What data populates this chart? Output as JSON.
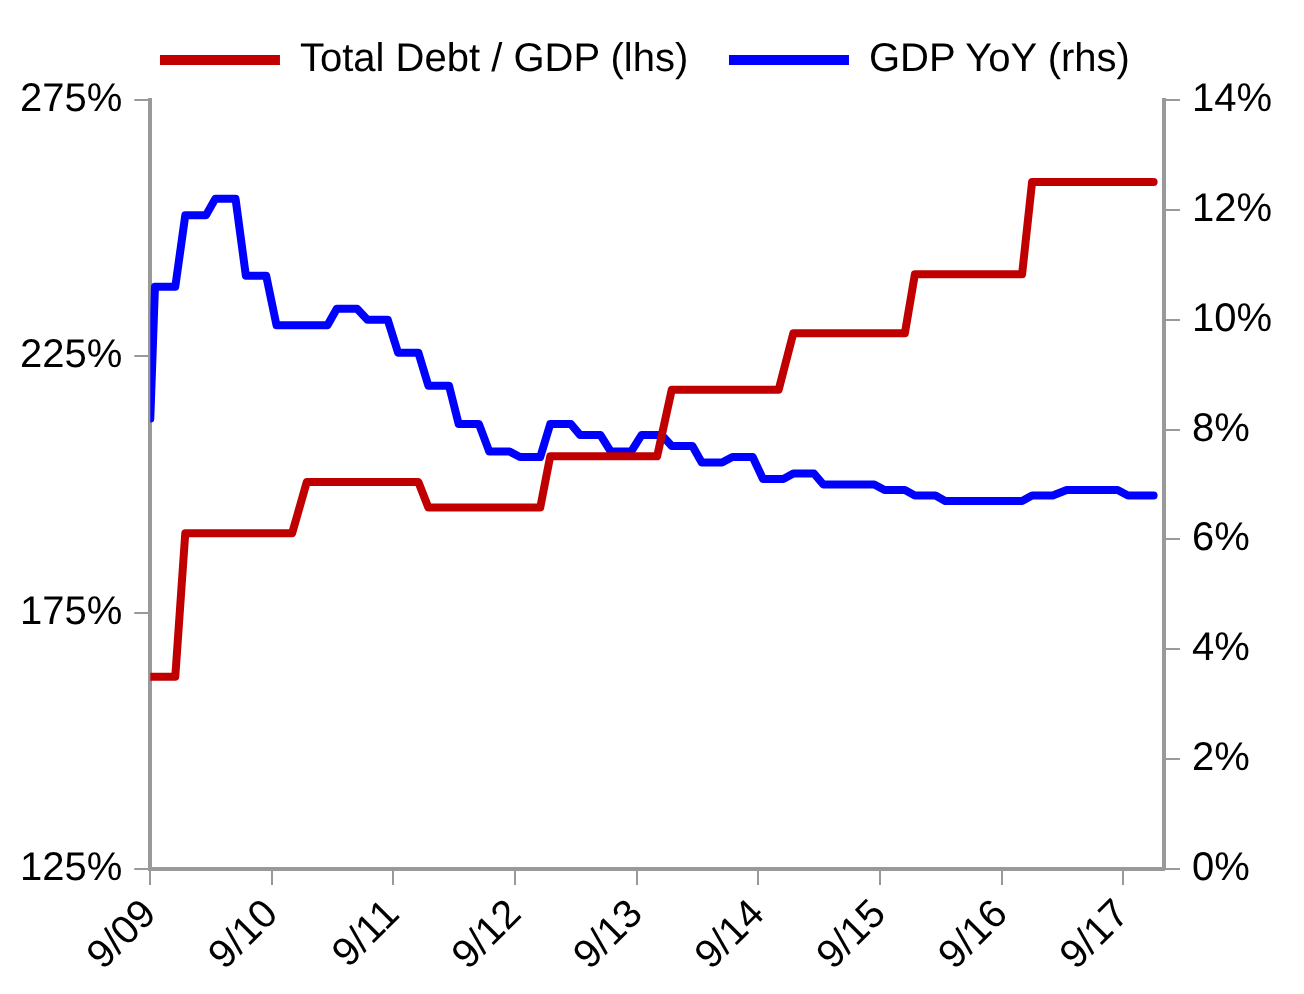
{
  "chart_data": {
    "type": "line",
    "legend": "top",
    "grid": false,
    "marker": "none",
    "line_style": "solid",
    "xlim": [
      "2009-09-01",
      "2018-01-01"
    ],
    "xticks": [
      {
        "value": "2009-09-01",
        "label": "9/09"
      },
      {
        "value": "2010-09-01",
        "label": "9/10"
      },
      {
        "value": "2011-09-01",
        "label": "9/11"
      },
      {
        "value": "2012-09-01",
        "label": "9/12"
      },
      {
        "value": "2013-09-01",
        "label": "9/13"
      },
      {
        "value": "2014-09-01",
        "label": "9/14"
      },
      {
        "value": "2015-09-01",
        "label": "9/15"
      },
      {
        "value": "2016-09-01",
        "label": "9/16"
      },
      {
        "value": "2017-09-01",
        "label": "9/17"
      }
    ],
    "ylim": [
      125,
      275
    ],
    "yticks": [
      {
        "value": 125,
        "label": "125%"
      },
      {
        "value": 175,
        "label": "175%"
      },
      {
        "value": 225,
        "label": "225%"
      },
      {
        "value": 275,
        "label": "275%"
      }
    ],
    "y2lim": [
      0,
      14
    ],
    "y2ticks": [
      {
        "value": 0,
        "label": "0%"
      },
      {
        "value": 2,
        "label": "2%"
      },
      {
        "value": 4,
        "label": "4%"
      },
      {
        "value": 6,
        "label": "6%"
      },
      {
        "value": 8,
        "label": "8%"
      },
      {
        "value": 10,
        "label": "10%"
      },
      {
        "value": 12,
        "label": "12%"
      },
      {
        "value": 14,
        "label": "14%"
      }
    ],
    "series": [
      {
        "name": "Total Debt / GDP (lhs)",
        "color": "#c00000",
        "axis": "y",
        "x": [
          "2009-09-01",
          "2009-11-15",
          "2009-12-15",
          "2010-11-01",
          "2010-12-15",
          "2011-11-15",
          "2011-12-15",
          "2012-11-15",
          "2012-12-15",
          "2013-11-01",
          "2013-12-15",
          "2014-11-01",
          "2014-12-15",
          "2015-11-15",
          "2015-12-15",
          "2016-11-01",
          "2016-12-01",
          "2017-12-01"
        ],
        "values": [
          162.5,
          162.5,
          190.5,
          190.5,
          200.5,
          200.5,
          195.5,
          195.5,
          205.5,
          205.5,
          218.5,
          218.5,
          229.5,
          229.5,
          241,
          241,
          259,
          259
        ]
      },
      {
        "name": "GDP YoY (rhs)",
        "color": "#0000ff",
        "axis": "y2",
        "x": [
          "2009-09-01",
          "2009-09-15",
          "2009-11-15",
          "2009-12-15",
          "2010-02-15",
          "2010-03-15",
          "2010-05-15",
          "2010-06-15",
          "2010-08-15",
          "2010-09-15",
          "2011-02-15",
          "2011-03-15",
          "2011-05-15",
          "2011-06-15",
          "2011-08-15",
          "2011-09-15",
          "2011-11-15",
          "2011-12-15",
          "2012-02-15",
          "2012-03-15",
          "2012-05-15",
          "2012-06-15",
          "2012-08-15",
          "2012-09-15",
          "2012-11-15",
          "2012-12-15",
          "2013-02-15",
          "2013-03-15",
          "2013-05-15",
          "2013-06-15",
          "2013-08-15",
          "2013-09-15",
          "2013-11-15",
          "2013-12-15",
          "2014-02-15",
          "2014-03-15",
          "2014-05-15",
          "2014-06-15",
          "2014-08-15",
          "2014-09-15",
          "2014-11-15",
          "2014-12-15",
          "2015-02-15",
          "2015-03-15",
          "2015-08-15",
          "2015-09-15",
          "2015-11-15",
          "2015-12-15",
          "2016-02-15",
          "2016-03-15",
          "2016-11-01",
          "2016-12-01",
          "2017-02-01",
          "2017-03-15",
          "2017-08-15",
          "2017-09-15",
          "2017-12-01"
        ],
        "values": [
          8.2,
          10.6,
          10.6,
          11.9,
          11.9,
          12.2,
          12.2,
          10.8,
          10.8,
          9.9,
          9.9,
          10.2,
          10.2,
          10.0,
          10.0,
          9.4,
          9.4,
          8.8,
          8.8,
          8.1,
          8.1,
          7.6,
          7.6,
          7.5,
          7.5,
          8.1,
          8.1,
          7.9,
          7.9,
          7.6,
          7.6,
          7.9,
          7.9,
          7.7,
          7.7,
          7.4,
          7.4,
          7.5,
          7.5,
          7.1,
          7.1,
          7.2,
          7.2,
          7.0,
          7.0,
          6.9,
          6.9,
          6.8,
          6.8,
          6.7,
          6.7,
          6.8,
          6.8,
          6.9,
          6.9,
          6.8,
          6.8
        ]
      }
    ]
  }
}
